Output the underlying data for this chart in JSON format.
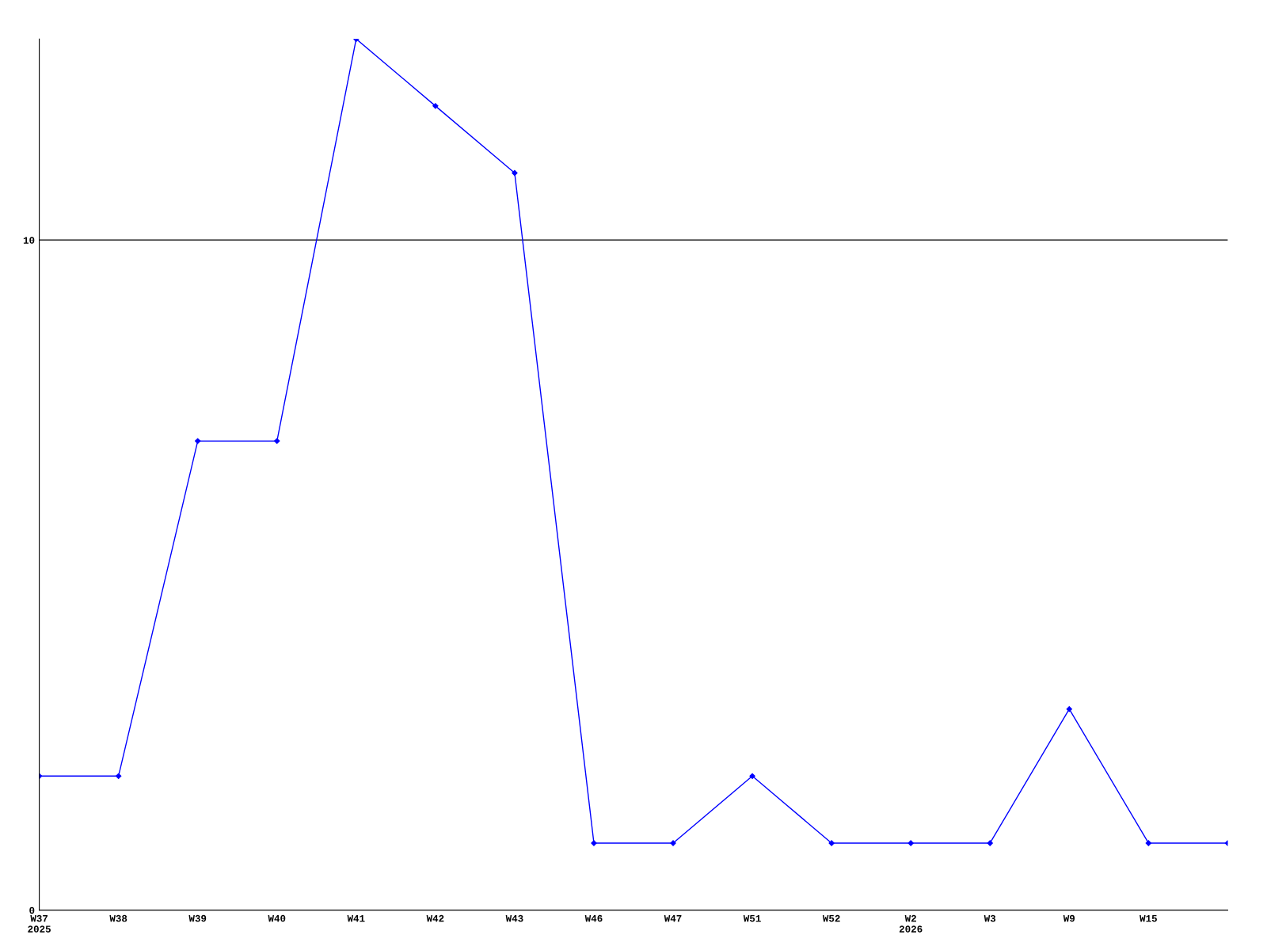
{
  "chart_data": {
    "type": "line",
    "categories": [
      "W37\n2025",
      "W38",
      "W39",
      "W40",
      "W41",
      "W42",
      "W43",
      "W46",
      "W47",
      "W51",
      "W52",
      "W2\n2026",
      "W3",
      "W9",
      "W15",
      null
    ],
    "series": [
      {
        "color": "#0000ff",
        "values": [
          2,
          2,
          7,
          7,
          13,
          12,
          11,
          1,
          1,
          2,
          1,
          1,
          1,
          3,
          1,
          1
        ]
      }
    ],
    "ylim": [
      0,
      13
    ],
    "yticks": [
      0,
      10
    ],
    "grid": "y",
    "marker": "diamond",
    "line_style": "solid"
  }
}
